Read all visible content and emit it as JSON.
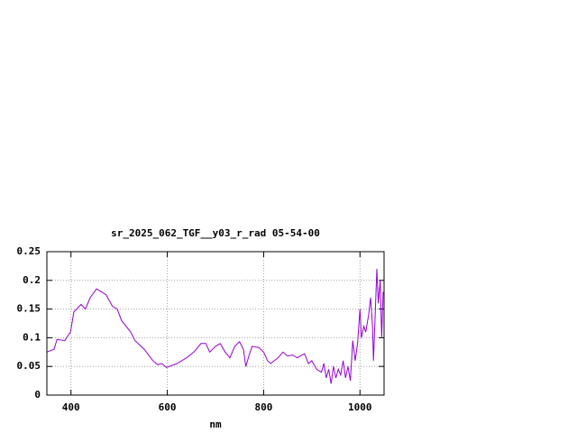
{
  "chart_data": {
    "type": "line",
    "title": "sr_2025_062_TGF__y03_r_rad 05-54-00",
    "x_label": "nm",
    "xlim": [
      350,
      1050
    ],
    "xticks": [
      400,
      600,
      800,
      1000
    ],
    "ylim": [
      0,
      0.25
    ],
    "yticks": [
      0,
      0.05,
      0.1,
      0.15,
      0.2,
      0.25
    ],
    "grid": true,
    "x": [
      350,
      365,
      371,
      387,
      399,
      406,
      421,
      430,
      440,
      453,
      473,
      486,
      496,
      505,
      524,
      533,
      552,
      570,
      580,
      589,
      598,
      620,
      640,
      655,
      670,
      680,
      688,
      700,
      710,
      720,
      730,
      740,
      750,
      758,
      763,
      770,
      776,
      790,
      800,
      808,
      815,
      822,
      830,
      840,
      850,
      860,
      870,
      880,
      885,
      893,
      900,
      910,
      920,
      925,
      930,
      935,
      940,
      945,
      950,
      955,
      960,
      965,
      970,
      975,
      980,
      985,
      990,
      995,
      1000,
      1003,
      1008,
      1012,
      1018,
      1022,
      1026,
      1028,
      1032,
      1035,
      1038,
      1042,
      1045,
      1048
    ],
    "series": [
      {
        "name": "sr_2025_062_TGF__y03_r_rad",
        "color": "#9400d3",
        "values": [
          0.075,
          0.08,
          0.097,
          0.095,
          0.11,
          0.145,
          0.158,
          0.15,
          0.17,
          0.185,
          0.175,
          0.155,
          0.15,
          0.13,
          0.11,
          0.095,
          0.08,
          0.06,
          0.053,
          0.055,
          0.048,
          0.055,
          0.065,
          0.075,
          0.09,
          0.09,
          0.075,
          0.085,
          0.09,
          0.075,
          0.065,
          0.085,
          0.093,
          0.08,
          0.05,
          0.07,
          0.085,
          0.083,
          0.075,
          0.06,
          0.055,
          0.06,
          0.065,
          0.075,
          0.068,
          0.07,
          0.065,
          0.07,
          0.072,
          0.055,
          0.06,
          0.045,
          0.04,
          0.055,
          0.03,
          0.045,
          0.02,
          0.05,
          0.03,
          0.045,
          0.035,
          0.06,
          0.03,
          0.05,
          0.025,
          0.095,
          0.06,
          0.09,
          0.15,
          0.1,
          0.12,
          0.11,
          0.14,
          0.17,
          0.12,
          0.06,
          0.15,
          0.22,
          0.16,
          0.2,
          0.1,
          0.18
        ]
      }
    ]
  }
}
